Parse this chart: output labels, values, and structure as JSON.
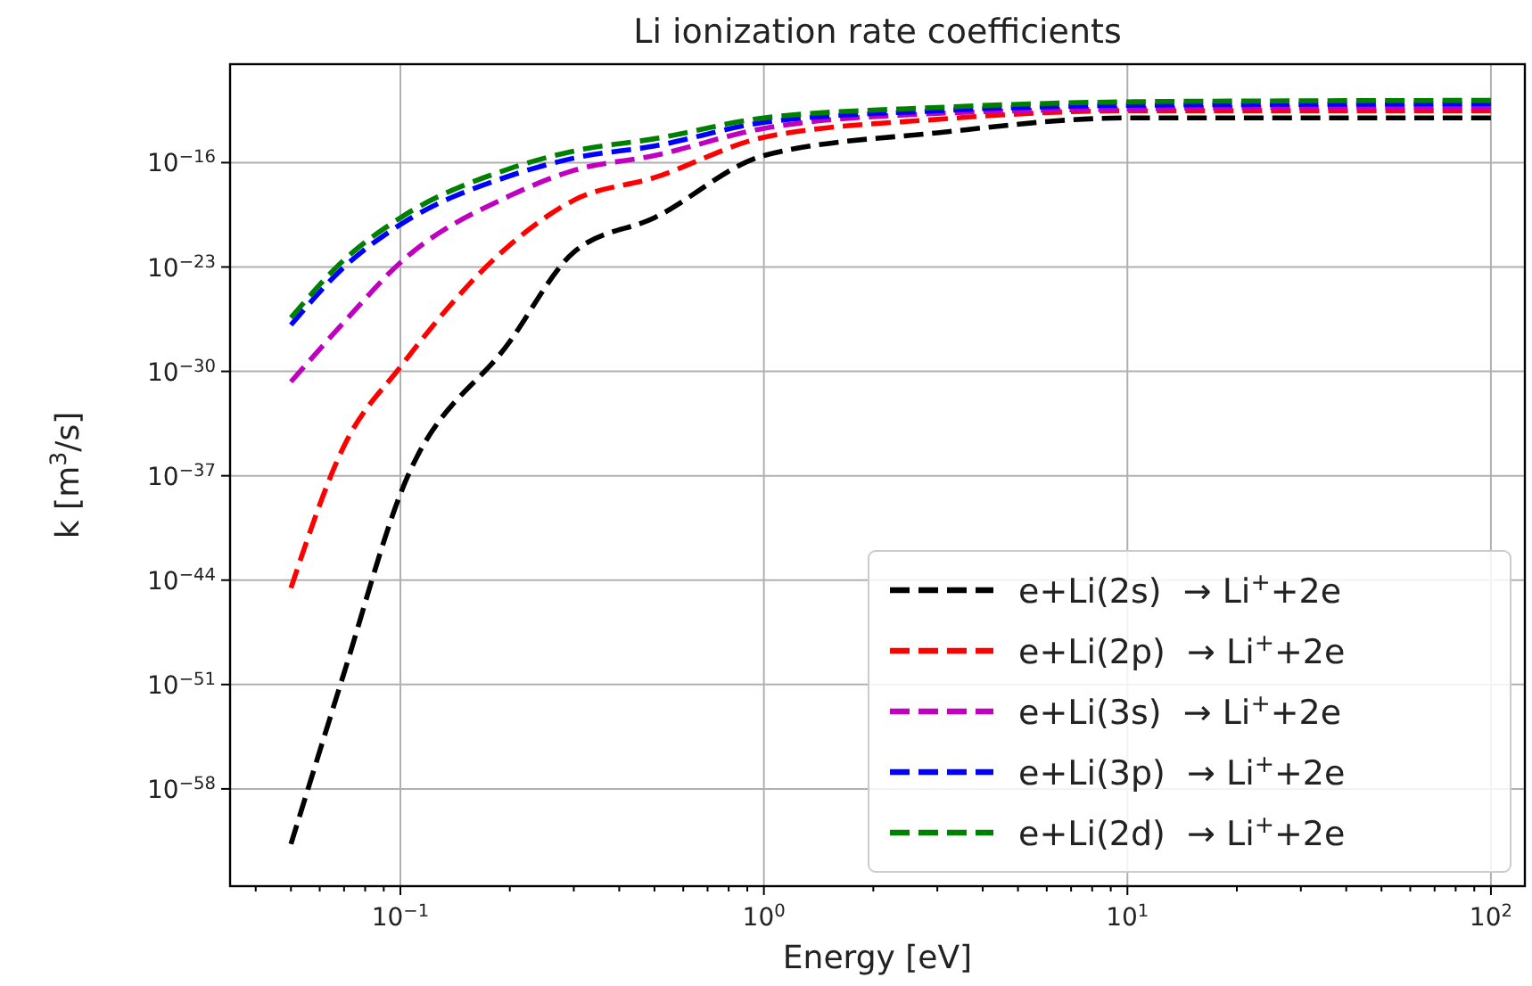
{
  "chart_data": {
    "type": "line",
    "title": "Li ionization rate coefficients",
    "xlabel": "Energy [eV]",
    "ylabel": "k [m$^{3}$/s]",
    "log": "xy",
    "grid": true,
    "legend": "bottom right",
    "line_style": "dashed",
    "marker": "none",
    "x": [
      0.05,
      0.07,
      0.1,
      0.2,
      0.3,
      0.5,
      1,
      3,
      10,
      30,
      100
    ],
    "xlim": [
      0.034,
      124
    ],
    "ylim": [
      3e-65,
      4e-10
    ],
    "xticks": [
      {
        "value": 0.04,
        "label": null
      },
      {
        "value": 0.05,
        "label": null
      },
      {
        "value": 0.06,
        "label": null
      },
      {
        "value": 0.07,
        "label": null
      },
      {
        "value": 0.08,
        "label": null
      },
      {
        "value": 0.09,
        "label": null
      },
      {
        "value": 0.1,
        "label": "10$^{−1}$"
      },
      {
        "value": 0.2,
        "label": null
      },
      {
        "value": 0.3,
        "label": null
      },
      {
        "value": 0.4,
        "label": null
      },
      {
        "value": 0.5,
        "label": null
      },
      {
        "value": 0.6,
        "label": null
      },
      {
        "value": 0.7,
        "label": null
      },
      {
        "value": 0.8,
        "label": null
      },
      {
        "value": 0.9,
        "label": null
      },
      {
        "value": 1,
        "label": "10$^{0}$"
      },
      {
        "value": 2,
        "label": null
      },
      {
        "value": 3,
        "label": null
      },
      {
        "value": 4,
        "label": null
      },
      {
        "value": 5,
        "label": null
      },
      {
        "value": 6,
        "label": null
      },
      {
        "value": 7,
        "label": null
      },
      {
        "value": 8,
        "label": null
      },
      {
        "value": 9,
        "label": null
      },
      {
        "value": 10,
        "label": "10$^{1}$"
      },
      {
        "value": 20,
        "label": null
      },
      {
        "value": 30,
        "label": null
      },
      {
        "value": 40,
        "label": null
      },
      {
        "value": 50,
        "label": null
      },
      {
        "value": 60,
        "label": null
      },
      {
        "value": 70,
        "label": null
      },
      {
        "value": 80,
        "label": null
      },
      {
        "value": 90,
        "label": null
      },
      {
        "value": 100,
        "label": "10$^{2}$"
      }
    ],
    "yticks": [
      {
        "value": 1e-58,
        "label": "10$^{−58}$"
      },
      {
        "value": 1e-51,
        "label": "10$^{−51}$"
      },
      {
        "value": 1e-44,
        "label": "10$^{−44}$"
      },
      {
        "value": 1e-37,
        "label": "10$^{−37}$"
      },
      {
        "value": 1e-30,
        "label": "10$^{−30}$"
      },
      {
        "value": 1e-23,
        "label": "10$^{−23}$"
      },
      {
        "value": 1e-16,
        "label": "10$^{−16}$"
      }
    ],
    "series": [
      {
        "name": "e+Li(2s)  → Li$^{+}$+2e",
        "color": "#000000",
        "values": [
          2e-62,
          6e-51,
          6e-39,
          1e-28,
          1e-22,
          2e-20,
          3e-16,
          1e-14,
          1e-13,
          1e-13,
          1e-13
        ]
      },
      {
        "name": "e+Li(2p)  → Li$^{+}$+2e",
        "color": "#ff0000",
        "values": [
          3e-45,
          1e-35,
          2e-30,
          3e-22,
          3e-19,
          1e-17,
          5e-15,
          8e-14,
          3e-13,
          3e-13,
          3e-13
        ]
      },
      {
        "name": "e+Li(3s)  → Li$^{+}$+2e",
        "color": "#bf00bf",
        "values": [
          2e-31,
          2e-27,
          2e-23,
          6e-19,
          3e-17,
          3e-16,
          2e-14,
          2e-13,
          4e-13,
          5e-13,
          5e-13
        ]
      },
      {
        "name": "e+Li(3p)  → Li$^{+}$+2e",
        "color": "#0000ff",
        "values": [
          1.3e-27,
          1e-23,
          7e-21,
          1.3e-17,
          2e-16,
          1.3e-15,
          5e-14,
          3e-13,
          7e-13,
          8e-13,
          9e-13
        ]
      },
      {
        "name": "e+Li(2d)  → Li$^{+}$+2e",
        "color": "#008000",
        "values": [
          4e-27,
          3e-23,
          2e-20,
          4e-17,
          6e-16,
          4e-15,
          1e-13,
          5e-13,
          1.2e-12,
          1.4e-12,
          1.5e-12
        ]
      }
    ]
  }
}
